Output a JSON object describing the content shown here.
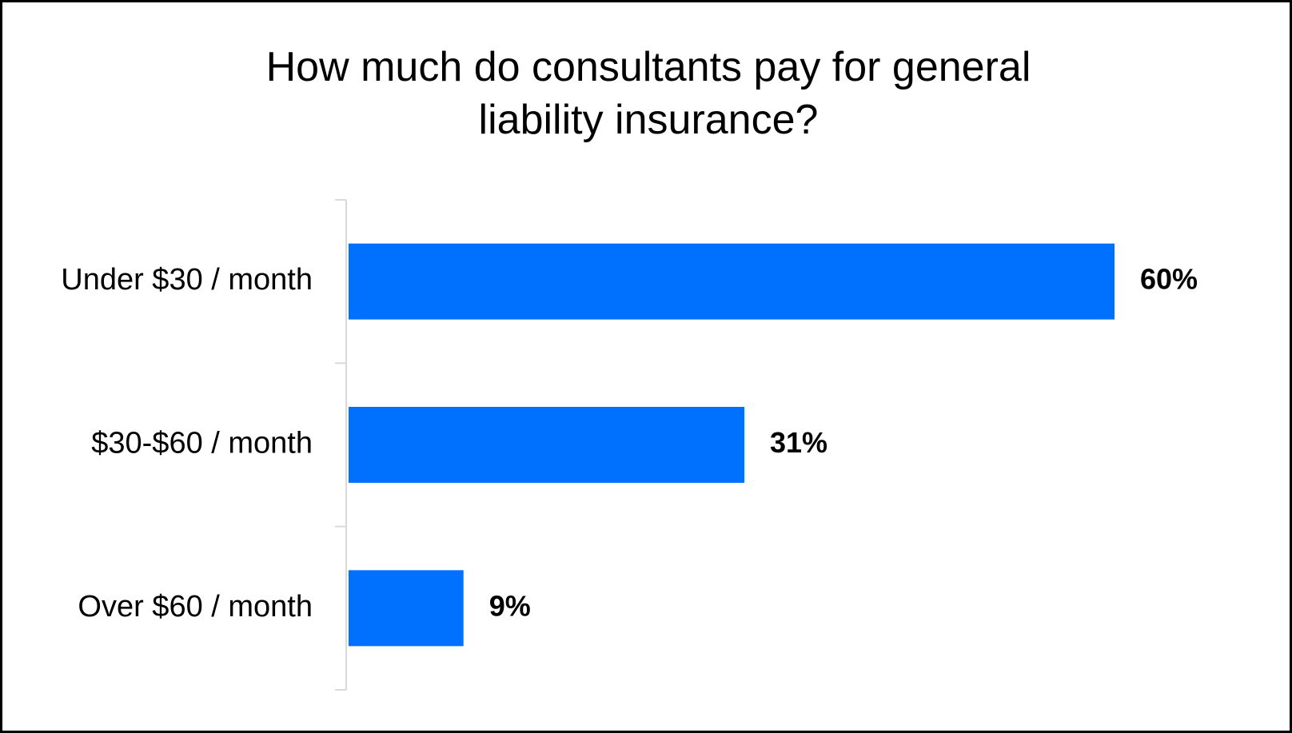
{
  "chart_data": {
    "type": "bar",
    "orientation": "horizontal",
    "title_lines": [
      "How much do consultants pay for general",
      "liability insurance?"
    ],
    "categories": [
      "Under $30 / month",
      "$30-$60 / month",
      "Over $60 / month"
    ],
    "values": [
      60,
      31,
      9
    ],
    "value_labels": [
      "60%",
      "31%",
      "9%"
    ],
    "unit": "%",
    "xlim": [
      0,
      60
    ],
    "grid": false,
    "legend": "none",
    "bar_color": "#0070FF",
    "axis_color": "#D9D9D9"
  }
}
